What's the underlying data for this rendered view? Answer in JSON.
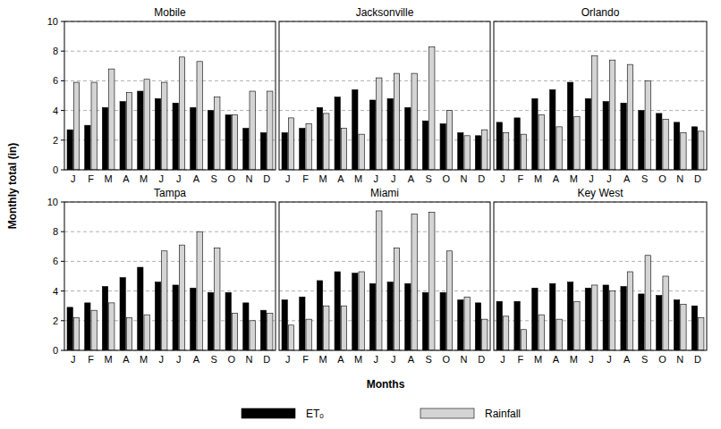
{
  "chart_data": [
    {
      "type": "bar",
      "title": "Mobile",
      "y_label": "Monthly total (in)",
      "legend": "bottom",
      "categories": [
        "J",
        "F",
        "M",
        "A",
        "M",
        "J",
        "J",
        "A",
        "S",
        "O",
        "N",
        "D"
      ],
      "series": [
        {
          "name": "ETₒ",
          "color": "#000000",
          "values": [
            2.7,
            3.0,
            4.2,
            4.6,
            5.3,
            4.8,
            4.5,
            4.2,
            4.0,
            3.7,
            2.8,
            2.5
          ]
        },
        {
          "name": "Rainfall",
          "color": "#d4d4d4",
          "values": [
            5.9,
            5.9,
            6.8,
            5.2,
            6.1,
            5.9,
            7.6,
            7.3,
            4.9,
            3.7,
            5.3,
            5.3
          ]
        }
      ],
      "ylim": [
        0,
        10
      ],
      "yticks": [
        0,
        2,
        4,
        6,
        8,
        10
      ],
      "grid": true
    },
    {
      "type": "bar",
      "title": "Jacksonville",
      "tick_labels": "x",
      "categories": [
        "J",
        "F",
        "M",
        "A",
        "M",
        "J",
        "J",
        "A",
        "S",
        "O",
        "N",
        "D"
      ],
      "series": [
        {
          "name": "ETₒ",
          "color": "#000000",
          "values": [
            2.5,
            2.8,
            4.2,
            4.9,
            5.4,
            4.7,
            4.8,
            4.2,
            3.3,
            3.1,
            2.5,
            2.3
          ]
        },
        {
          "name": "Rainfall",
          "color": "#d4d4d4",
          "values": [
            3.5,
            3.1,
            3.8,
            2.8,
            2.4,
            6.2,
            6.5,
            6.5,
            8.3,
            4.0,
            2.3,
            2.7
          ]
        }
      ],
      "ylim": [
        0,
        10
      ],
      "yticks": [
        0,
        2,
        4,
        6,
        8,
        10
      ],
      "grid": true
    },
    {
      "type": "bar",
      "title": "Orlando",
      "tick_labels": "x",
      "categories": [
        "J",
        "F",
        "M",
        "A",
        "M",
        "J",
        "J",
        "A",
        "S",
        "O",
        "N",
        "D"
      ],
      "series": [
        {
          "name": "ETₒ",
          "color": "#000000",
          "values": [
            3.2,
            3.5,
            4.8,
            5.4,
            5.9,
            4.8,
            4.6,
            4.5,
            4.0,
            3.8,
            3.2,
            2.9
          ]
        },
        {
          "name": "Rainfall",
          "color": "#d4d4d4",
          "values": [
            2.5,
            2.4,
            3.7,
            2.9,
            3.6,
            7.7,
            7.4,
            7.1,
            6.0,
            3.4,
            2.5,
            2.6
          ]
        }
      ],
      "ylim": [
        0,
        10
      ],
      "yticks": [
        0,
        2,
        4,
        6,
        8,
        10
      ],
      "grid": true
    },
    {
      "type": "bar",
      "title": "Tampa",
      "categories": [
        "J",
        "F",
        "M",
        "A",
        "M",
        "J",
        "J",
        "A",
        "S",
        "O",
        "N",
        "D"
      ],
      "series": [
        {
          "name": "ETₒ",
          "color": "#000000",
          "values": [
            2.9,
            3.2,
            4.3,
            4.9,
            5.6,
            4.6,
            4.4,
            4.2,
            3.9,
            3.9,
            3.2,
            2.7
          ]
        },
        {
          "name": "Rainfall",
          "color": "#d4d4d4",
          "values": [
            2.2,
            2.7,
            3.2,
            2.2,
            2.4,
            6.7,
            7.1,
            8.0,
            6.9,
            2.5,
            2.0,
            2.5
          ]
        }
      ],
      "ylim": [
        0,
        10
      ],
      "yticks": [
        0,
        2,
        4,
        6,
        8,
        10
      ],
      "grid": true
    },
    {
      "type": "bar",
      "title": "Miami",
      "x_label": "Months",
      "tick_labels": "x",
      "categories": [
        "J",
        "F",
        "M",
        "A",
        "M",
        "J",
        "J",
        "A",
        "S",
        "O",
        "N",
        "D"
      ],
      "series": [
        {
          "name": "ETₒ",
          "color": "#000000",
          "values": [
            3.4,
            3.6,
            4.7,
            5.3,
            5.2,
            4.5,
            4.6,
            4.5,
            3.9,
            3.9,
            3.4,
            3.2
          ]
        },
        {
          "name": "Rainfall",
          "color": "#d4d4d4",
          "values": [
            1.7,
            2.1,
            3.0,
            3.0,
            5.3,
            9.4,
            6.9,
            9.2,
            9.3,
            6.7,
            3.6,
            2.1
          ]
        }
      ],
      "ylim": [
        0,
        10
      ],
      "yticks": [
        0,
        2,
        4,
        6,
        8,
        10
      ],
      "grid": true
    },
    {
      "type": "bar",
      "title": "Key West",
      "tick_labels": "x",
      "categories": [
        "J",
        "F",
        "M",
        "A",
        "M",
        "J",
        "J",
        "A",
        "S",
        "O",
        "N",
        "D"
      ],
      "series": [
        {
          "name": "ETₒ",
          "color": "#000000",
          "values": [
            3.3,
            3.3,
            4.2,
            4.5,
            4.6,
            4.2,
            4.4,
            4.3,
            3.8,
            3.7,
            3.4,
            3.0
          ]
        },
        {
          "name": "Rainfall",
          "color": "#d4d4d4",
          "values": [
            2.3,
            1.4,
            2.4,
            2.1,
            3.3,
            4.4,
            4.0,
            5.3,
            6.4,
            5.0,
            3.1,
            2.2
          ]
        }
      ],
      "ylim": [
        0,
        10
      ],
      "yticks": [
        0,
        2,
        4,
        6,
        8,
        10
      ],
      "grid": true
    }
  ]
}
